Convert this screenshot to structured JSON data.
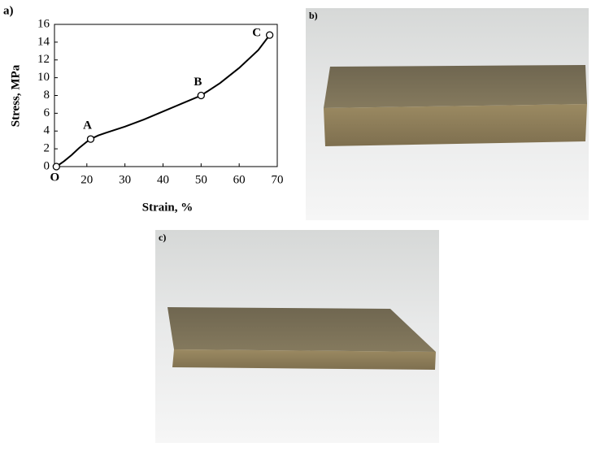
{
  "chart_data": {
    "type": "line",
    "xlabel": "Strain, %",
    "ylabel": "Stress, MPa",
    "x": [
      12,
      14,
      16,
      18,
      20,
      21,
      23,
      25,
      30,
      35,
      40,
      45,
      50,
      55,
      60,
      65,
      68
    ],
    "values": [
      0,
      0.6,
      1.3,
      2.1,
      2.8,
      3.1,
      3.5,
      3.8,
      4.5,
      5.3,
      6.2,
      7.1,
      8.0,
      9.4,
      11.1,
      13.1,
      14.8
    ],
    "color": "#000000",
    "points": {
      "x": [
        12,
        21,
        50,
        68
      ],
      "values": [
        0,
        3.1,
        8.0,
        14.8
      ],
      "labels": [
        "O",
        "A",
        "B",
        "C"
      ]
    },
    "xlim": [
      11.5,
      70
    ],
    "xticks": [
      20,
      30,
      40,
      50,
      60,
      70
    ],
    "ylim": [
      0,
      16
    ],
    "yticks": [
      0,
      2,
      4,
      6,
      8,
      10,
      12,
      14,
      16
    ],
    "grid": false
  },
  "panels": [
    "a)",
    "b)",
    "c)"
  ]
}
